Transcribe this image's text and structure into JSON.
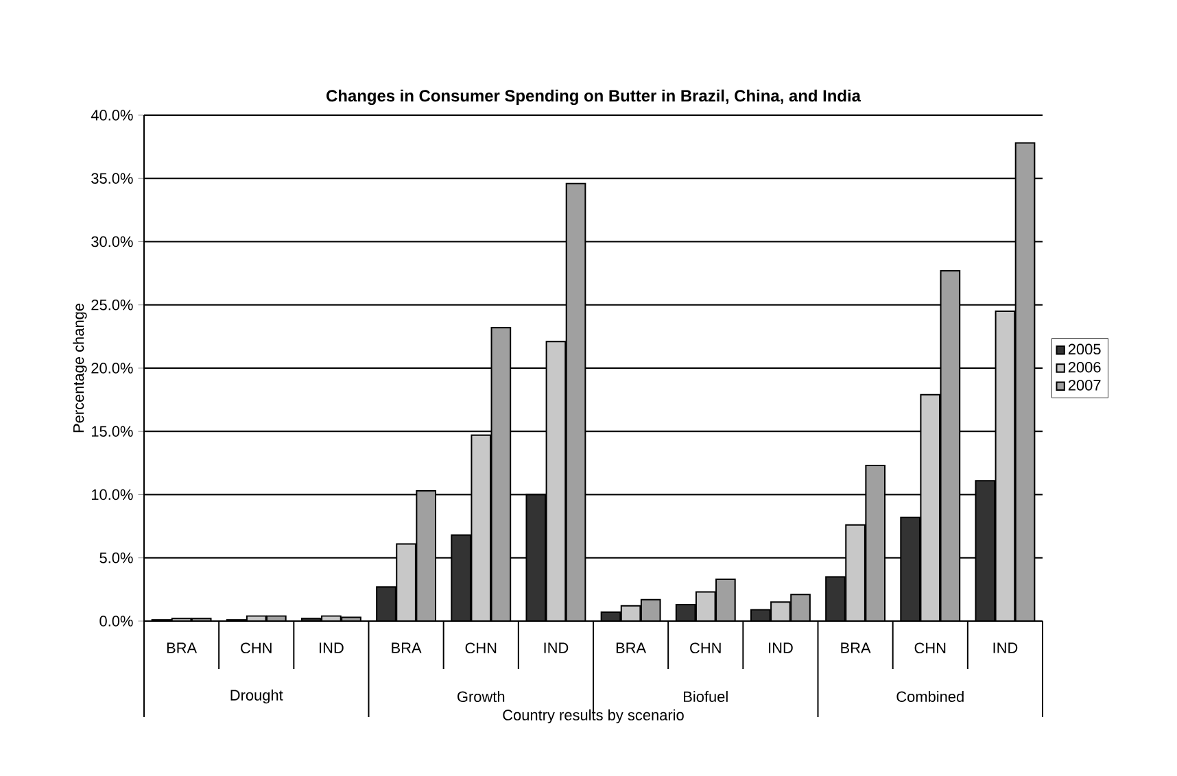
{
  "chart_data": {
    "type": "bar",
    "title": "Changes in Consumer Spending on Butter in Brazil, China, and India",
    "xlabel": "Country results by scenario",
    "ylabel": "Percentage change",
    "categories": [
      "BRA",
      "CHN",
      "IND",
      "BRA",
      "CHN",
      "IND",
      "BRA",
      "CHN",
      "IND",
      "BRA",
      "CHN",
      "IND"
    ],
    "annotations": [
      "Drought",
      "Growth",
      "Biofuel",
      "Combined"
    ],
    "series": [
      {
        "name": "2005",
        "color": "#333333",
        "values": [
          0.1,
          0.1,
          0.2,
          2.7,
          6.8,
          10.0,
          0.7,
          1.3,
          0.9,
          3.5,
          8.2,
          11.1
        ]
      },
      {
        "name": "2006",
        "color": "#c8c8c8",
        "values": [
          0.2,
          0.4,
          0.4,
          6.1,
          14.7,
          22.1,
          1.2,
          2.3,
          1.5,
          7.6,
          17.9,
          24.5
        ]
      },
      {
        "name": "2007",
        "color": "#a0a0a0",
        "values": [
          0.2,
          0.4,
          0.3,
          10.3,
          23.2,
          34.6,
          1.7,
          3.3,
          2.1,
          12.3,
          27.7,
          37.8
        ]
      }
    ],
    "ylim": [
      0,
      40
    ],
    "yticks": [
      {
        "value": 0,
        "label": "0.0%"
      },
      {
        "value": 5,
        "label": "5.0%"
      },
      {
        "value": 10,
        "label": "10.0%"
      },
      {
        "value": 15,
        "label": "15.0%"
      },
      {
        "value": 20,
        "label": "20.0%"
      },
      {
        "value": 25,
        "label": "25.0%"
      },
      {
        "value": 30,
        "label": "30.0%"
      },
      {
        "value": 35,
        "label": "35.0%"
      },
      {
        "value": 40,
        "label": "40.0%"
      }
    ],
    "grid": "y",
    "legend": "right"
  }
}
